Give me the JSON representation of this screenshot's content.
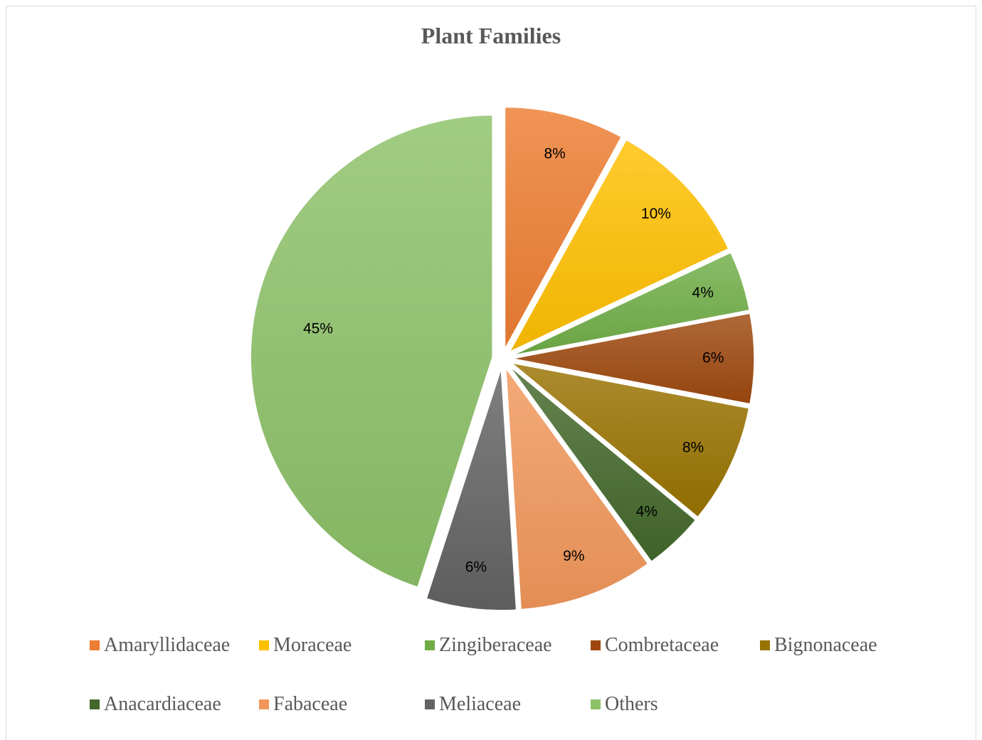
{
  "chart_data": {
    "type": "pie",
    "title": "Plant Families",
    "categories": [
      "Amaryllidaceae",
      "Moraceae",
      "Zingiberaceae",
      "Combretaceae",
      "Bignonaceae",
      "Anacardiaceae",
      "Fabaceae",
      "Meliaceae",
      "Others"
    ],
    "values": [
      8,
      10,
      4,
      6,
      8,
      4,
      9,
      6,
      45
    ],
    "labels": [
      "8%",
      "10%",
      "4%",
      "6%",
      "8%",
      "4%",
      "9%",
      "6%",
      "45%"
    ],
    "colors": [
      "#ED7D31",
      "#FFC000",
      "#70AD47",
      "#9E480E",
      "#997300",
      "#43682B",
      "#F1975A",
      "#636363",
      "#8CC168"
    ],
    "legend_position": "bottom",
    "exploded": true
  }
}
